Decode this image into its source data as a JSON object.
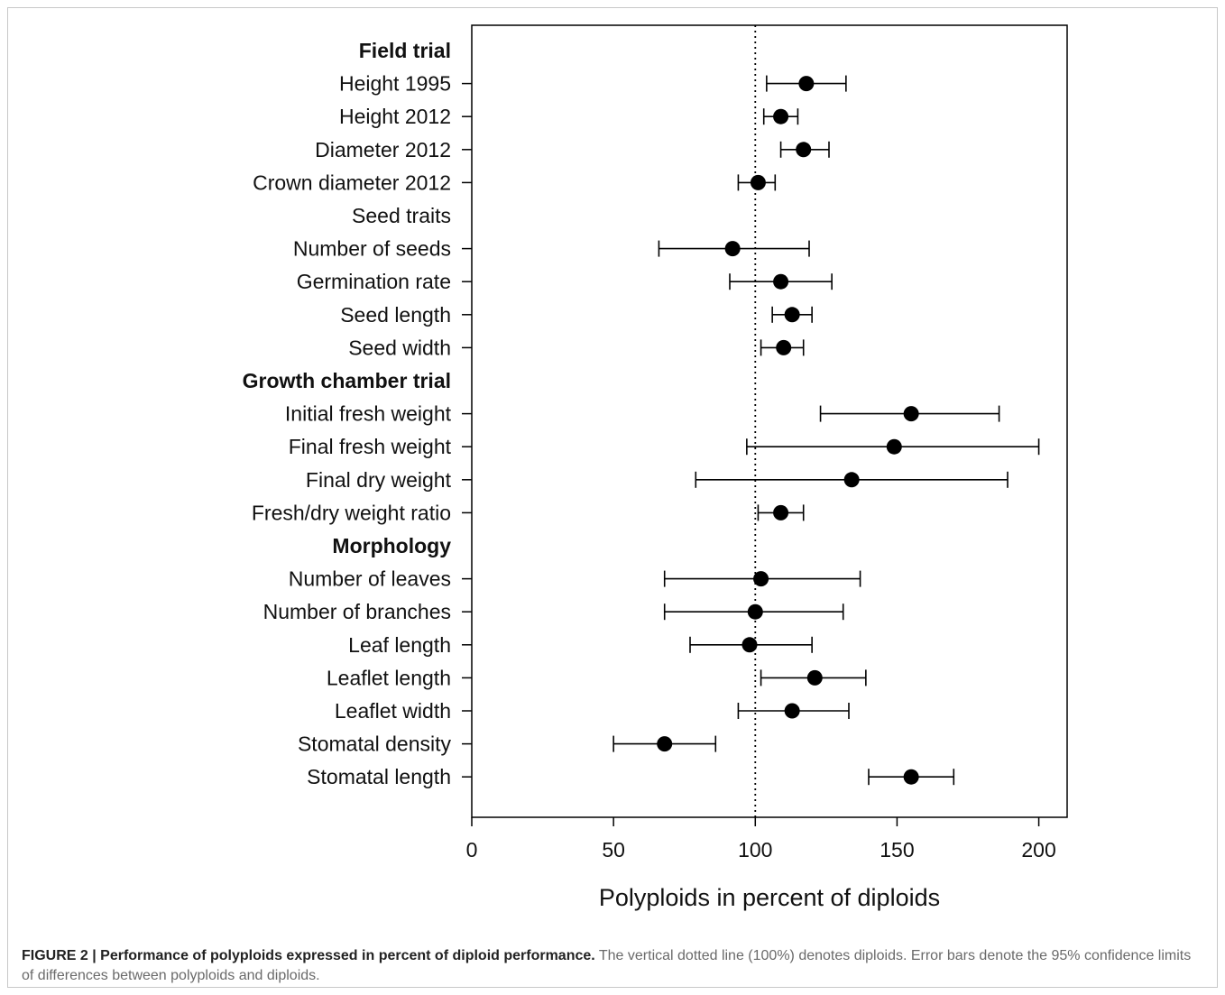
{
  "chart_data": {
    "type": "scatter",
    "style": "forest-plot-with-error-bars",
    "xlabel": "Polyploids in percent of diploids",
    "xlim": [
      0,
      210
    ],
    "xticks": [
      0,
      50,
      100,
      150,
      200
    ],
    "reference_line": {
      "x": 100,
      "style": "dotted"
    },
    "grid": false,
    "legend": "none",
    "rows": [
      {
        "label": "Field trial",
        "heading": true
      },
      {
        "label": "Height 1995",
        "value": 118,
        "low": 104,
        "high": 132
      },
      {
        "label": "Height 2012",
        "value": 109,
        "low": 103,
        "high": 115
      },
      {
        "label": "Diameter 2012",
        "value": 117,
        "low": 109,
        "high": 126
      },
      {
        "label": "Crown diameter 2012",
        "value": 101,
        "low": 94,
        "high": 107
      },
      {
        "label": "Seed traits",
        "heading": false
      },
      {
        "label": "Number of seeds",
        "value": 92,
        "low": 66,
        "high": 119
      },
      {
        "label": "Germination rate",
        "value": 109,
        "low": 91,
        "high": 127
      },
      {
        "label": "Seed length",
        "value": 113,
        "low": 106,
        "high": 120
      },
      {
        "label": "Seed width",
        "value": 110,
        "low": 102,
        "high": 117
      },
      {
        "label": "Growth chamber trial",
        "heading": true
      },
      {
        "label": "Initial fresh weight",
        "value": 155,
        "low": 123,
        "high": 186
      },
      {
        "label": "Final fresh weight",
        "value": 149,
        "low": 97,
        "high": 200
      },
      {
        "label": "Final dry weight",
        "value": 134,
        "low": 79,
        "high": 189
      },
      {
        "label": "Fresh/dry weight ratio",
        "value": 109,
        "low": 101,
        "high": 117
      },
      {
        "label": "Morphology",
        "heading": true
      },
      {
        "label": "Number of leaves",
        "value": 102,
        "low": 68,
        "high": 137
      },
      {
        "label": "Number of branches",
        "value": 100,
        "low": 68,
        "high": 131
      },
      {
        "label": "Leaf length",
        "value": 98,
        "low": 77,
        "high": 120
      },
      {
        "label": "Leaflet length",
        "value": 121,
        "low": 102,
        "high": 139
      },
      {
        "label": "Leaflet width",
        "value": 113,
        "low": 94,
        "high": 133
      },
      {
        "label": "Stomatal density",
        "value": 68,
        "low": 50,
        "high": 86
      },
      {
        "label": "Stomatal length",
        "value": 155,
        "low": 140,
        "high": 170
      }
    ]
  },
  "caption": {
    "lead": "FIGURE 2 | Performance of polyploids expressed in percent of diploid performance.",
    "body": " The vertical dotted line (100%) denotes diploids. Error bars denote the 95% confidence limits of differences between polyploids and diploids."
  }
}
